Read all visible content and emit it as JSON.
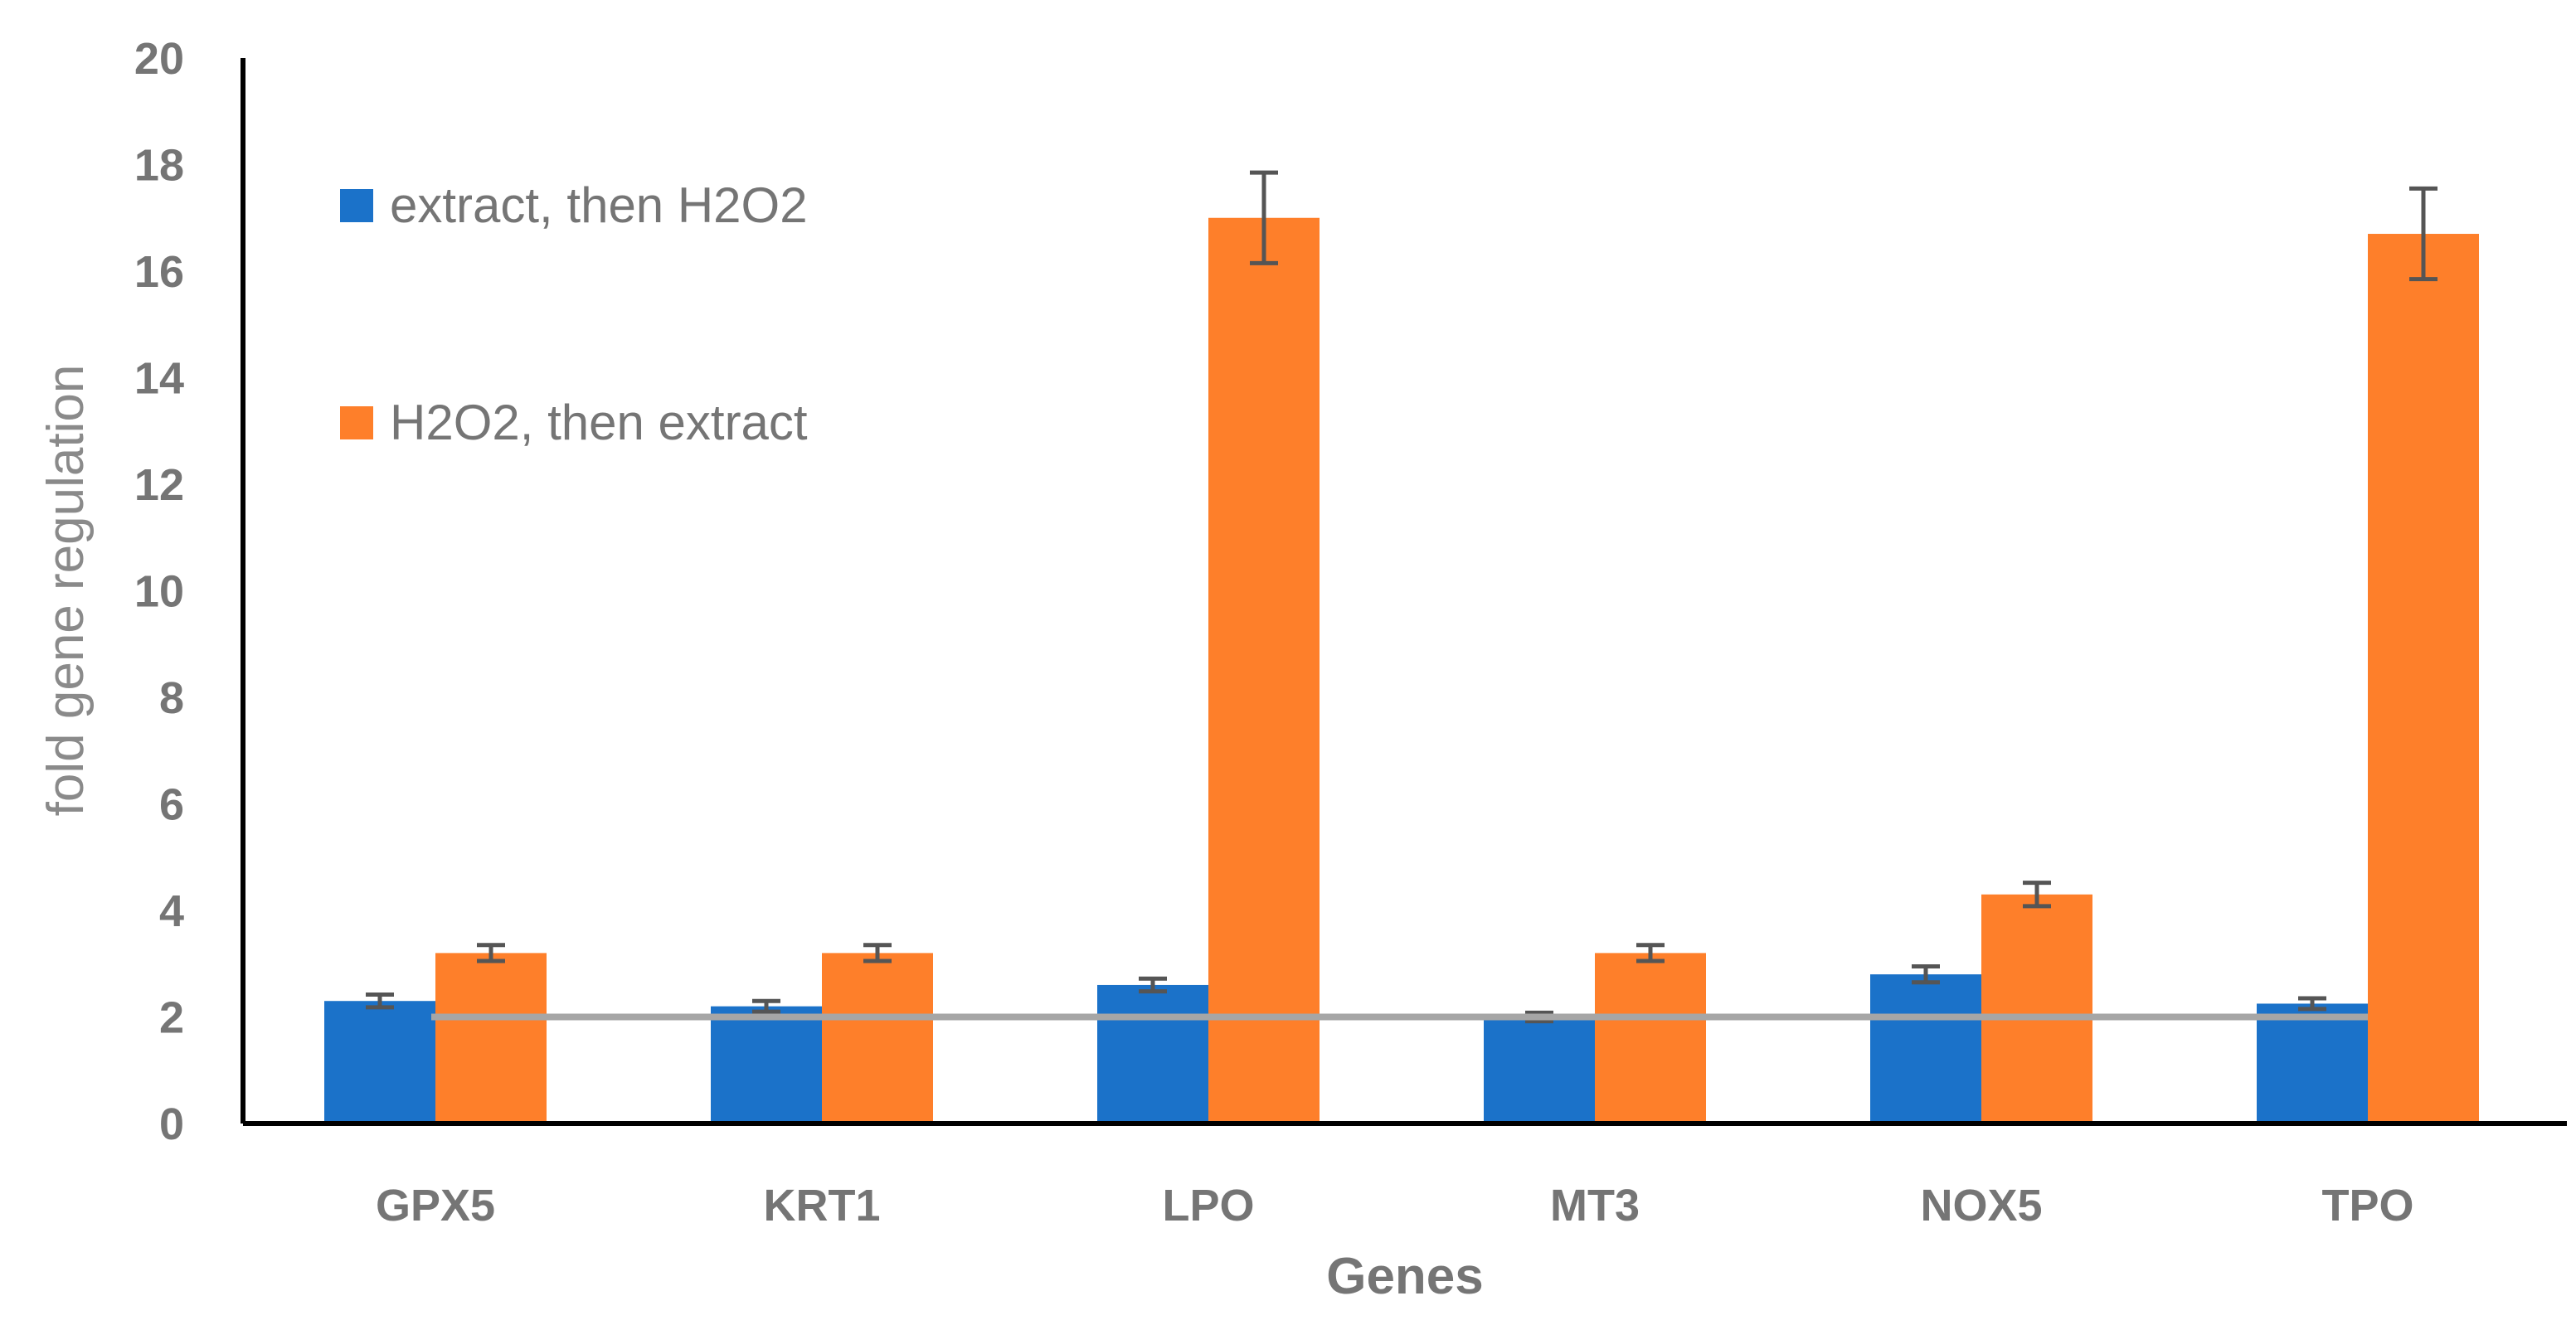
{
  "chart_data": {
    "type": "bar",
    "title": "",
    "xlabel": "Genes",
    "ylabel": "fold gene regulation",
    "ylim": [
      0,
      20
    ],
    "yticks": [
      0,
      2,
      4,
      6,
      8,
      10,
      12,
      14,
      16,
      18,
      20
    ],
    "grid": false,
    "legend_position": "top-left",
    "categories": [
      "GPX5",
      "KRT1",
      "LPO",
      "MT3",
      "NOX5",
      "TPO"
    ],
    "series": [
      {
        "name": "extract, then H2O2",
        "color": "#1b72c9",
        "values": [
          2.3,
          2.2,
          2.6,
          2.0,
          2.8,
          2.25
        ],
        "errors": [
          0.12,
          0.1,
          0.12,
          0.08,
          0.15,
          0.1
        ]
      },
      {
        "name": "H2O2, then extract",
        "color": "#fe7f2a",
        "values": [
          3.2,
          3.2,
          17.0,
          3.2,
          4.3,
          16.7
        ],
        "errors": [
          0.15,
          0.15,
          0.85,
          0.15,
          0.22,
          0.85
        ]
      }
    ],
    "reference_line": {
      "value": 2,
      "color": "#a6a6a6"
    },
    "error_bar_color": "#555555"
  }
}
